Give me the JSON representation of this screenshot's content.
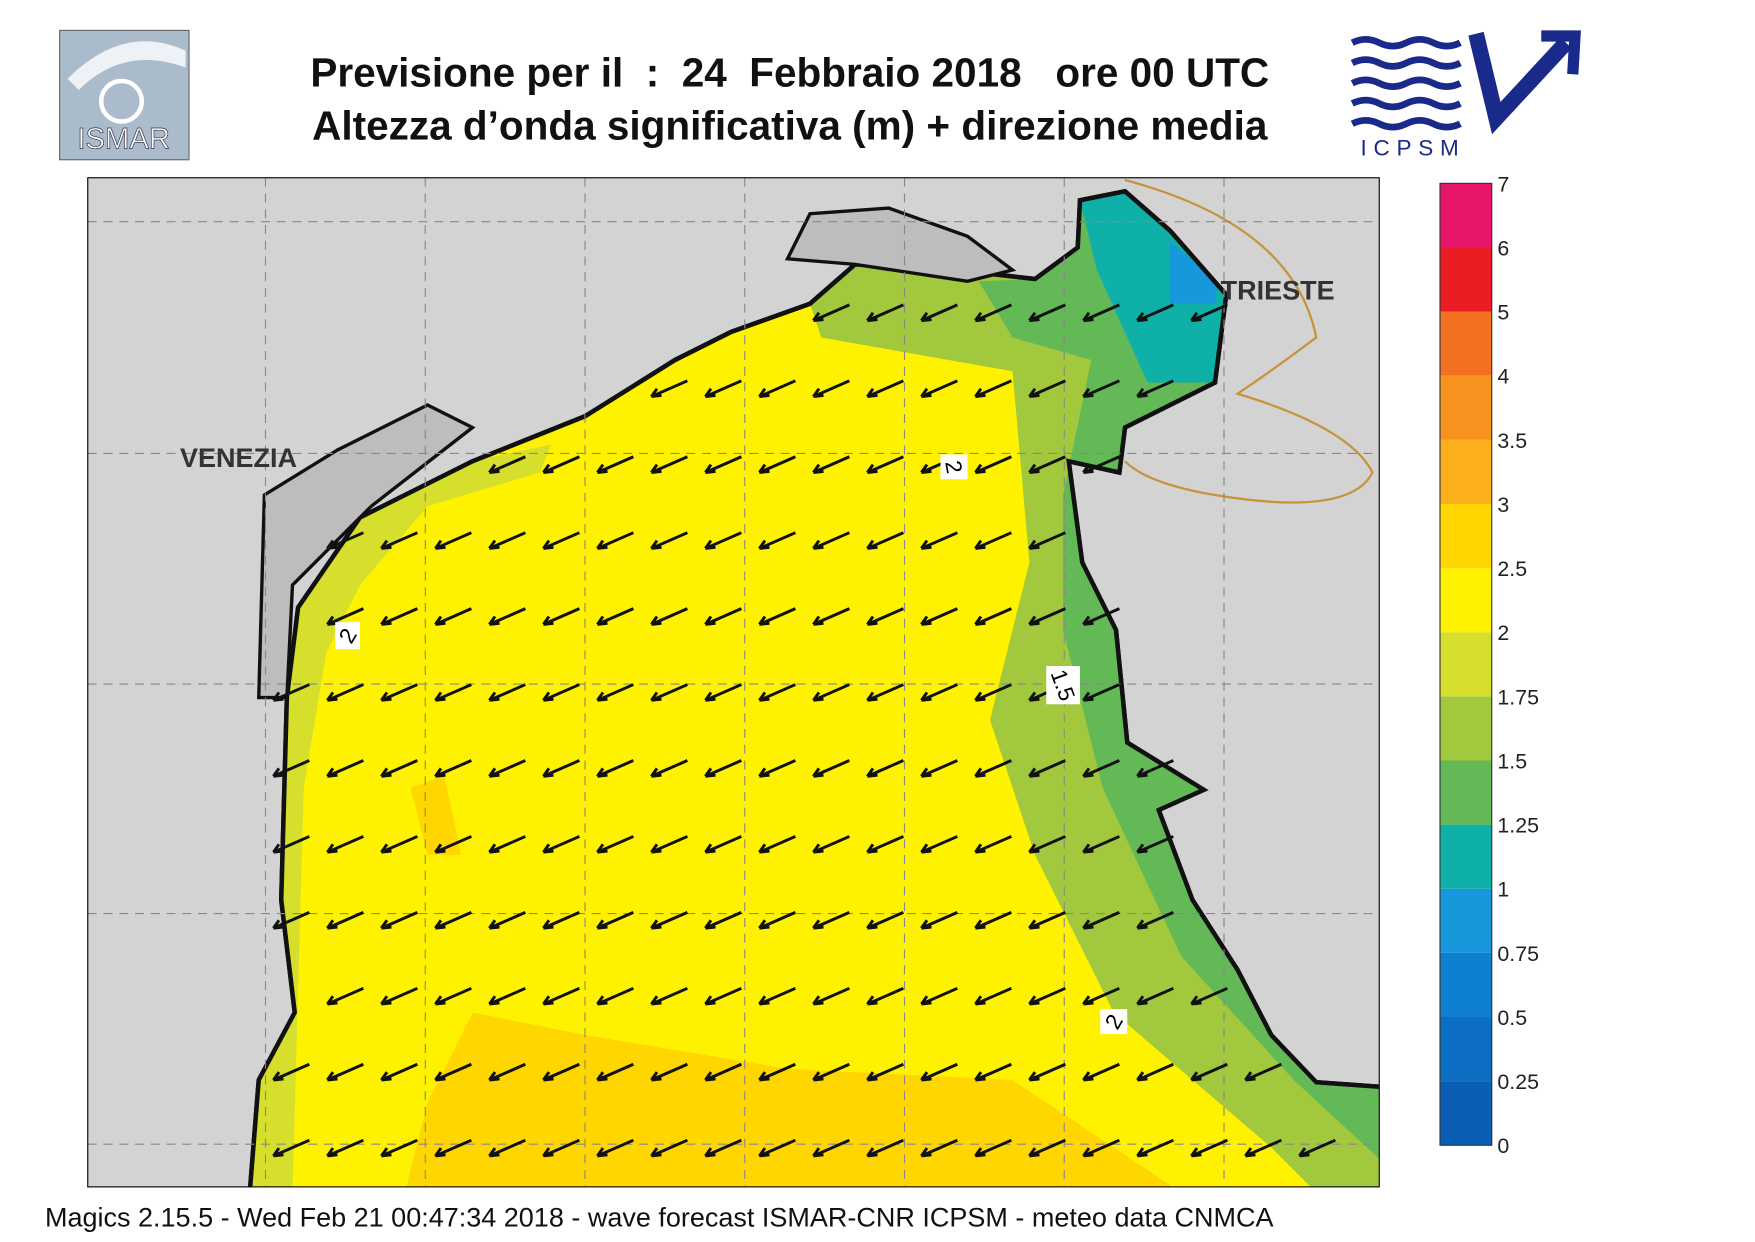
{
  "header": {
    "title_line1": "Previsione per il  :  24  Febbraio 2018   ore 00 UTC",
    "title_line2": "Altezza d’onda significativa (m) + direzione media",
    "logo_left": "ISMAR",
    "logo_right": "ICPSM"
  },
  "map": {
    "places": [
      "VENEZIA",
      "TRIESTE"
    ],
    "contour_labels": [
      "2",
      "1.5",
      "2",
      "2"
    ]
  },
  "colorbar": {
    "levels": [
      0,
      0.25,
      0.5,
      0.75,
      1,
      1.25,
      1.5,
      1.75,
      2,
      2.5,
      3,
      3.5,
      4,
      5,
      6,
      7
    ],
    "colors": [
      "#0a5fb4",
      "#0b6ec2",
      "#0f80cf",
      "#1797dc",
      "#0fb0a8",
      "#62b956",
      "#a2c83e",
      "#d6df2c",
      "#fff200",
      "#ffd600",
      "#fbb01c",
      "#f6921e",
      "#f37022",
      "#ec1c24",
      "#e8166a"
    ]
  },
  "footer": "Magics 2.15.5 - Wed Feb 21 00:47:34 2018 - wave forecast  ISMAR-CNR  ICPSM - meteo data   CNMCA"
}
